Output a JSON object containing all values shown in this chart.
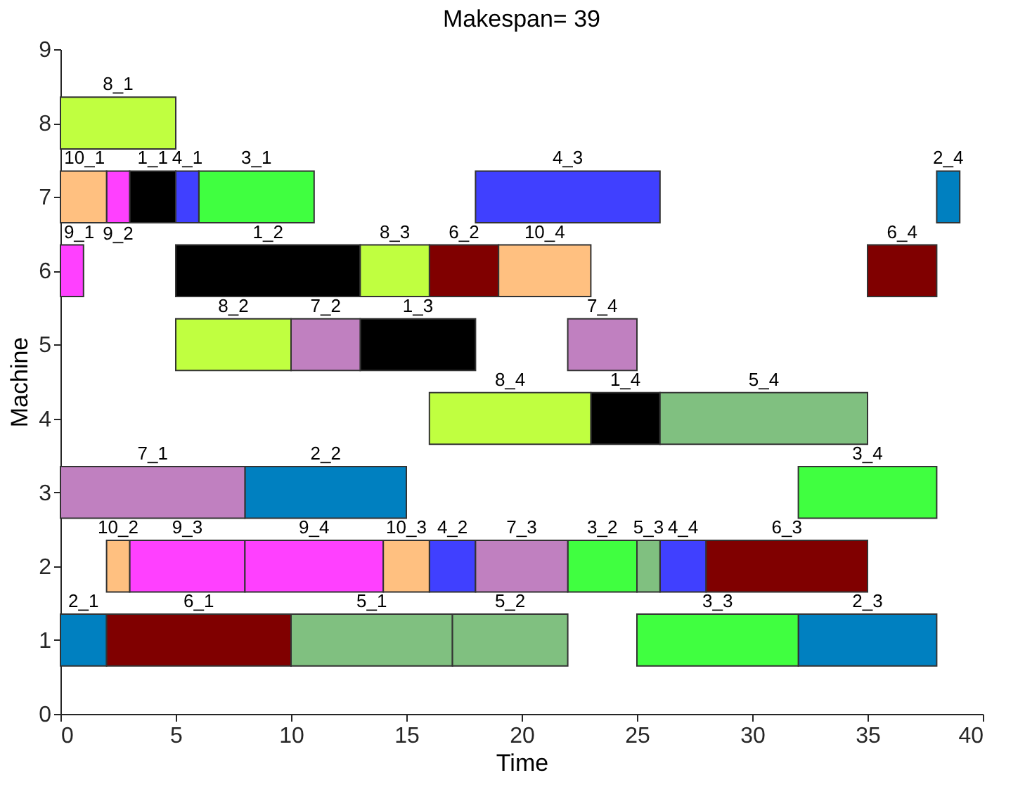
{
  "chart_data": {
    "type": "bar",
    "orientation": "horizontal",
    "title": "Makespan= 39",
    "xlabel": "Time",
    "ylabel": "Machine",
    "xlim": [
      0,
      40
    ],
    "xticks": [
      0,
      5,
      10,
      15,
      20,
      25,
      30,
      35,
      40
    ],
    "ylim": [
      0,
      9
    ],
    "yticks": [
      0,
      1,
      2,
      3,
      4,
      5,
      6,
      7,
      8,
      9
    ],
    "grid": false,
    "legend": false,
    "series": [
      {
        "color": "#000000",
        "x": [
          4,
          5,
          6,
          7
        ],
        "base": [
          23,
          13,
          5,
          3
        ],
        "values": [
          3,
          5,
          8,
          2
        ]
      },
      {
        "color": "#0080c0",
        "x": [
          1,
          3,
          7
        ],
        "base": [
          0,
          8,
          38
        ],
        "values": [
          2,
          7,
          1
        ]
      },
      {
        "color": "#0080c0",
        "x": [
          1
        ],
        "base": [
          32
        ],
        "values": [
          6
        ]
      },
      {
        "color": "#40ff40",
        "x": [
          1,
          2,
          3,
          7
        ],
        "base": [
          25,
          22,
          32,
          6
        ],
        "values": [
          7,
          3,
          6,
          5
        ]
      },
      {
        "color": "#4040ff",
        "x": [
          2,
          7
        ],
        "base": [
          16,
          5
        ],
        "values": [
          2,
          1
        ]
      },
      {
        "color": "#4040ff",
        "x": [
          2,
          7
        ],
        "base": [
          26,
          18
        ],
        "values": [
          2,
          8
        ]
      },
      {
        "color": "#80c080",
        "x": [
          1,
          2,
          4
        ],
        "base": [
          10,
          25,
          26
        ],
        "values": [
          7,
          1,
          9
        ]
      },
      {
        "color": "#80c080",
        "x": [
          1
        ],
        "base": [
          17
        ],
        "values": [
          5
        ]
      },
      {
        "color": "#800000",
        "x": [
          6
        ],
        "base": [
          35
        ],
        "values": [
          3
        ]
      },
      {
        "color": "#800000",
        "x": [
          1,
          2,
          6
        ],
        "base": [
          2,
          28,
          16
        ],
        "values": [
          8,
          7,
          3
        ]
      },
      {
        "color": "#c080c0",
        "x": [
          5
        ],
        "base": [
          22
        ],
        "values": [
          3
        ]
      },
      {
        "color": "#c080c0",
        "x": [
          2,
          3,
          5
        ],
        "base": [
          18,
          0,
          10
        ],
        "values": [
          4,
          8,
          3
        ]
      },
      {
        "color": "#c0ff40",
        "x": [
          4,
          5,
          6,
          8
        ],
        "base": [
          16,
          5,
          13,
          0
        ],
        "values": [
          7,
          5,
          3,
          5
        ]
      },
      {
        "color": "#ff40ff",
        "x": [
          2,
          6,
          7
        ],
        "base": [
          3,
          0,
          2
        ],
        "values": [
          5,
          1,
          1
        ]
      },
      {
        "color": "#ff40ff",
        "x": [
          2
        ],
        "base": [
          8
        ],
        "values": [
          6
        ]
      },
      {
        "color": "#ffc080",
        "x": [
          2,
          6,
          7
        ],
        "base": [
          2,
          19,
          0
        ],
        "values": [
          1,
          4,
          2
        ]
      },
      {
        "color": "#ffc080",
        "x": [
          2
        ],
        "base": [
          14
        ],
        "values": [
          2
        ]
      }
    ],
    "annotations": [
      "1_4",
      "1_3",
      "1_2",
      "1_1",
      "2_1",
      "2_2",
      "2_4",
      "2_3",
      "3_3",
      "3_2",
      "3_4",
      "3_1",
      "4_2",
      "4_1",
      "4_4",
      "4_3",
      "5_1",
      "5_3",
      "5_4",
      "5_2",
      "6_4",
      "6_1",
      "6_3",
      "6_2",
      "7_4",
      "7_3",
      "7_1",
      "7_2",
      "8_4",
      "8_2",
      "8_3",
      "8_1",
      "9_3",
      "9_1",
      "9_2",
      "9_4",
      "10_2",
      "10_4",
      "10_1",
      "10_3"
    ]
  }
}
